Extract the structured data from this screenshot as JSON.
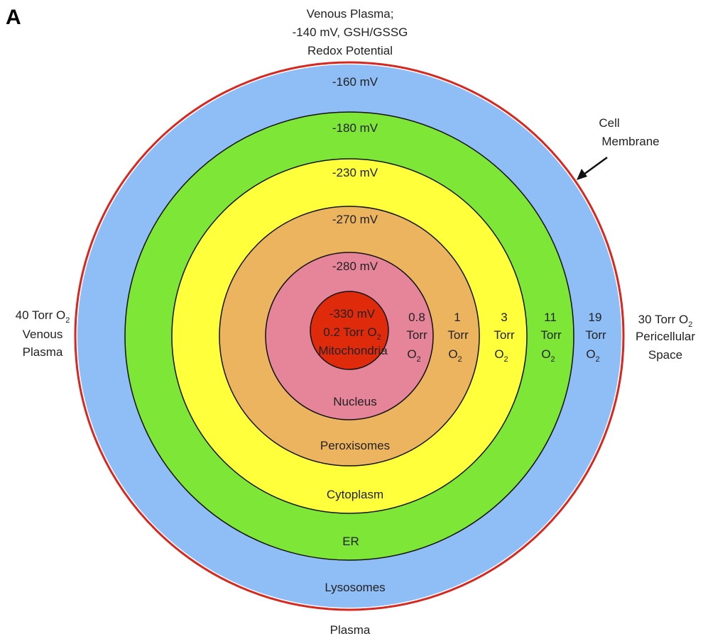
{
  "panel_label": "A",
  "top_caption": [
    "Venous Plasma;",
    "-140 mV, GSH/GSSG",
    "Redox Potential"
  ],
  "bottom_caption": "Plasma",
  "left_caption": {
    "line1": "40 Torr O",
    "sub": "2",
    "line2": "Venous",
    "line3": "Plasma"
  },
  "right_caption": {
    "line1": "30 Torr O",
    "sub": "2",
    "line2": "Pericellular",
    "line3": "Space"
  },
  "membrane_label": [
    "Cell",
    "Membrane"
  ],
  "rings": [
    {
      "name": "Lysosomes",
      "potential": "-160 mV",
      "torr": "19",
      "color": "#8fbdf5"
    },
    {
      "name": "ER",
      "potential": "-180 mV",
      "torr": "11",
      "color": "#7ee636"
    },
    {
      "name": "Cytoplasm",
      "potential": "-230 mV",
      "torr": "3",
      "color": "#ffff3c"
    },
    {
      "name": "Peroxisomes",
      "potential": "-270 mV",
      "torr": "1",
      "color": "#ecb45e"
    },
    {
      "name": "Nucleus",
      "potential": "-280 mV",
      "torr": "0.8",
      "color": "#e6849a"
    }
  ],
  "core": {
    "name": "Mitochondria",
    "potential": "-330 mV",
    "torr_text": "0.2 Torr O",
    "sub": "2",
    "color": "#e02a0c"
  },
  "torr_word": "Torr",
  "o2": {
    "base": "O",
    "sub": "2"
  },
  "membrane_color": "#d8281e"
}
